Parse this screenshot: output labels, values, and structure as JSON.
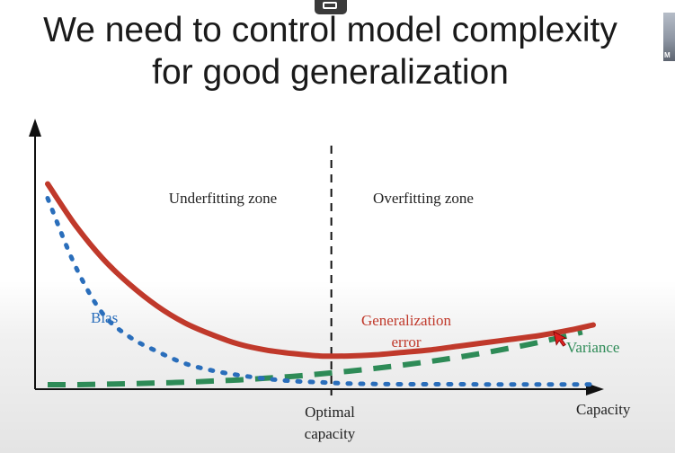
{
  "slide": {
    "title_line1": "We need to control model complexity",
    "title_line2": "for good generalization"
  },
  "participant": {
    "label": "M"
  },
  "chart_data": {
    "type": "line",
    "xlabel": "Capacity",
    "ylabel": "",
    "zones": [
      "Underfitting zone",
      "Overfitting zone"
    ],
    "optimal_label": [
      "Optimal",
      "capacity"
    ],
    "optimal_x": 0.52,
    "series": [
      {
        "name": "Generalization error",
        "label_lines": [
          "Generalization",
          "error"
        ],
        "style": "solid",
        "color": "#c0392b",
        "x": [
          0.0,
          0.05,
          0.1,
          0.15,
          0.2,
          0.25,
          0.3,
          0.35,
          0.4,
          0.45,
          0.5,
          0.55,
          0.6,
          0.65,
          0.7,
          0.75,
          0.8,
          0.85,
          0.9,
          0.95,
          1.0
        ],
        "y": [
          0.84,
          0.67,
          0.53,
          0.42,
          0.33,
          0.26,
          0.21,
          0.17,
          0.145,
          0.13,
          0.12,
          0.12,
          0.125,
          0.135,
          0.145,
          0.16,
          0.175,
          0.19,
          0.205,
          0.225,
          0.25
        ]
      },
      {
        "name": "Bias",
        "label_lines": [
          "Bias"
        ],
        "style": "dotted",
        "color": "#2a6ebb",
        "x": [
          0.0,
          0.05,
          0.1,
          0.15,
          0.2,
          0.25,
          0.3,
          0.35,
          0.4,
          0.45,
          0.5,
          0.55,
          0.6,
          0.65,
          0.7,
          0.75,
          0.8,
          0.85,
          0.9,
          0.95,
          1.0
        ],
        "y": [
          0.78,
          0.5,
          0.3,
          0.2,
          0.14,
          0.09,
          0.06,
          0.04,
          0.025,
          0.015,
          0.01,
          0.005,
          0.003,
          0.002,
          0.002,
          0.002,
          0.001,
          0.001,
          0.001,
          0.001,
          0.001
        ]
      },
      {
        "name": "Variance",
        "label_lines": [
          "Variance"
        ],
        "style": "dashed",
        "color": "#2e8b57",
        "x": [
          0.0,
          0.05,
          0.1,
          0.15,
          0.2,
          0.25,
          0.3,
          0.35,
          0.4,
          0.45,
          0.5,
          0.55,
          0.6,
          0.65,
          0.7,
          0.75,
          0.8,
          0.85,
          0.9,
          0.95,
          0.98
        ],
        "y": [
          0.0,
          0.0,
          0.002,
          0.004,
          0.007,
          0.01,
          0.015,
          0.02,
          0.027,
          0.035,
          0.045,
          0.056,
          0.068,
          0.082,
          0.097,
          0.114,
          0.133,
          0.154,
          0.177,
          0.203,
          0.22
        ]
      }
    ],
    "xlim": [
      0,
      1
    ],
    "ylim": [
      0,
      1
    ],
    "grid": false,
    "legend": "inline labels"
  }
}
